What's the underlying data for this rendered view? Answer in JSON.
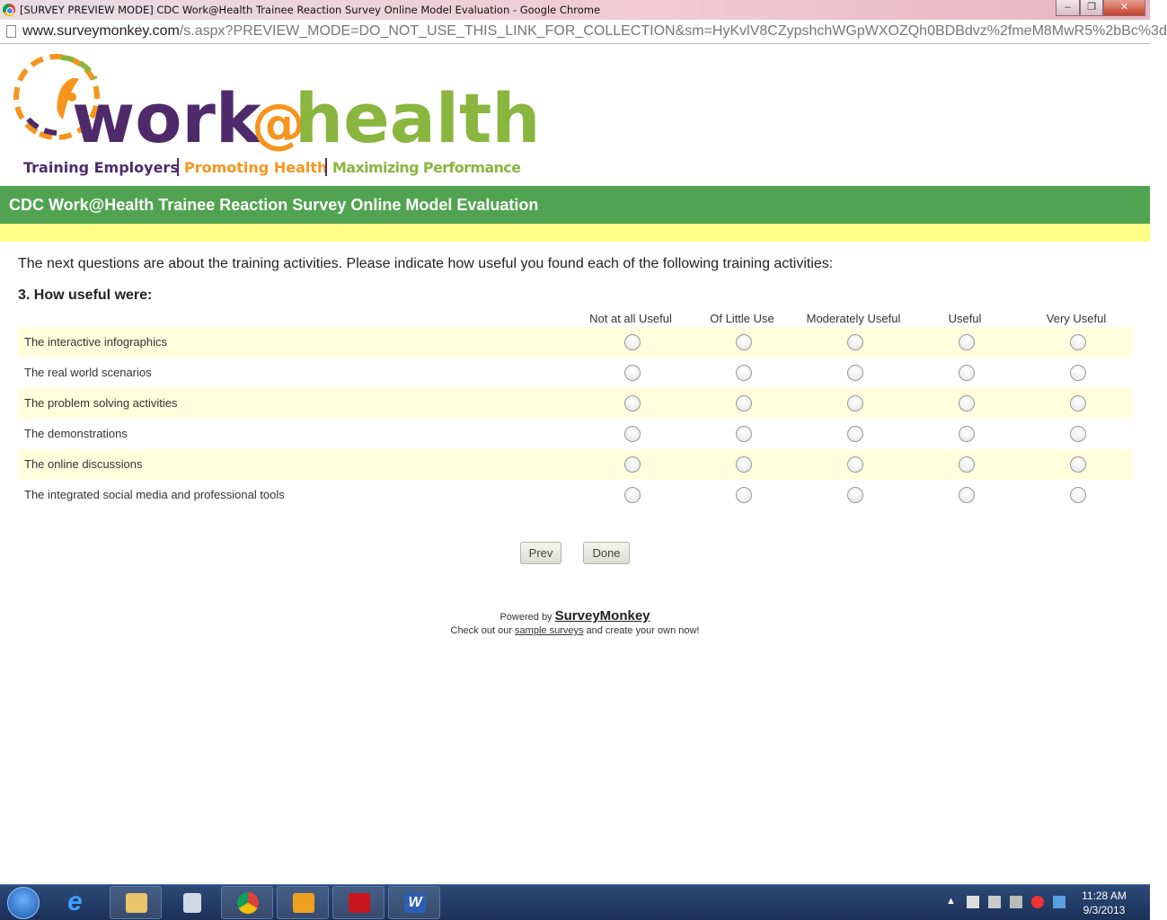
{
  "window": {
    "title": "[SURVEY PREVIEW MODE] CDC Work@Health Trainee Reaction Survey Online Model Evaluation - Google Chrome",
    "minimize": "–",
    "restore": "❐",
    "close": "✕"
  },
  "address": {
    "host": "www.surveymonkey.com",
    "path": "/s.aspx?PREVIEW_MODE=DO_NOT_USE_THIS_LINK_FOR_COLLECTION&sm=HyKvlV8CZypshchWGpWXOZQh0BDBdvz%2fmeM8MwR5%2bBc%3d"
  },
  "logo": {
    "word1": "work",
    "at": "@",
    "word2": "health",
    "tag1": "Training Employers",
    "tag2": "Promoting Health",
    "tag3": "Maximizing Performance",
    "colors": {
      "purple": "#4f2a6b",
      "orange": "#f7941d",
      "green": "#8ab53f"
    }
  },
  "survey": {
    "title": "CDC Work@Health Trainee Reaction Survey Online Model Evaluation",
    "intro": "The next questions are about the training activities. Please indicate how useful you found each of the following training activities:",
    "question": "3. How useful were:",
    "columns": [
      "Not at all Useful",
      "Of Little Use",
      "Moderately Useful",
      "Useful",
      "Very Useful"
    ],
    "rows": [
      "The interactive infographics",
      "The real world scenarios",
      "The problem solving activities",
      "The demonstrations",
      "The online discussions",
      "The integrated social media and professional tools"
    ],
    "prev": "Prev",
    "done": "Done"
  },
  "footer": {
    "powered": "Powered by ",
    "brand": "SurveyMonkey",
    "check1": "Check out our ",
    "link": "sample surveys",
    "check2": " and create your own now!"
  },
  "taskbar": {
    "apps": [
      "internet-explorer",
      "file-explorer",
      "calculator",
      "chrome",
      "outlook",
      "adobe-reader",
      "word"
    ],
    "time": "11:28 AM",
    "date": "9/3/2013"
  },
  "colors": {
    "header_green": "#51a351",
    "band_yellow": "#ffff88",
    "row_alt": "#ffffdd"
  }
}
